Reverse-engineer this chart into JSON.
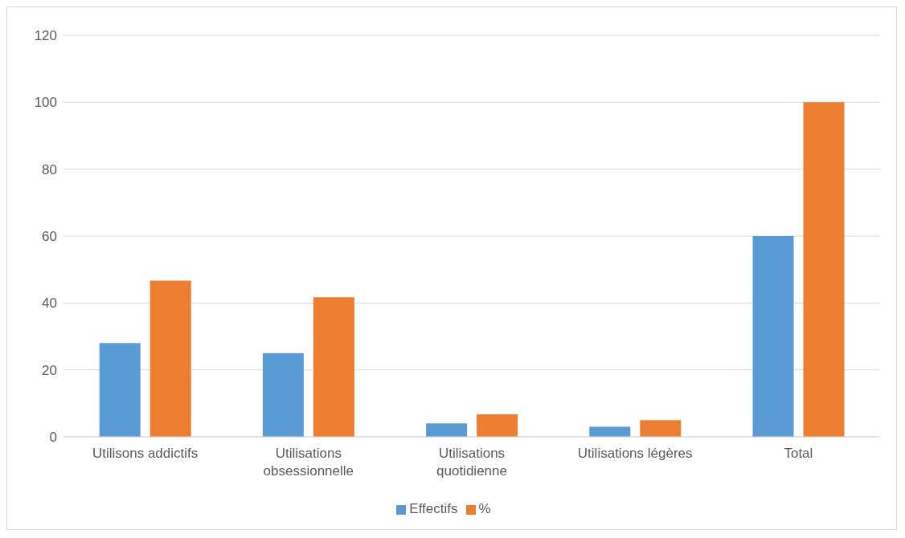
{
  "chart_data": {
    "type": "bar",
    "categories": [
      "Utilisons addictifs",
      "Utilisations obsessionnelle",
      "Utilisations quotidienne",
      "Utilisations légères",
      "Total"
    ],
    "series": [
      {
        "name": "Effectifs",
        "color": "#5b9bd5",
        "values": [
          28,
          25,
          4,
          3,
          60
        ]
      },
      {
        "name": "%",
        "color": "#ed7d31",
        "values": [
          46.7,
          41.7,
          6.7,
          5,
          100
        ]
      }
    ],
    "ylim": [
      0,
      120
    ],
    "yticks": [
      0,
      20,
      40,
      60,
      80,
      100,
      120
    ],
    "grid": "y",
    "legend": "bottom"
  }
}
